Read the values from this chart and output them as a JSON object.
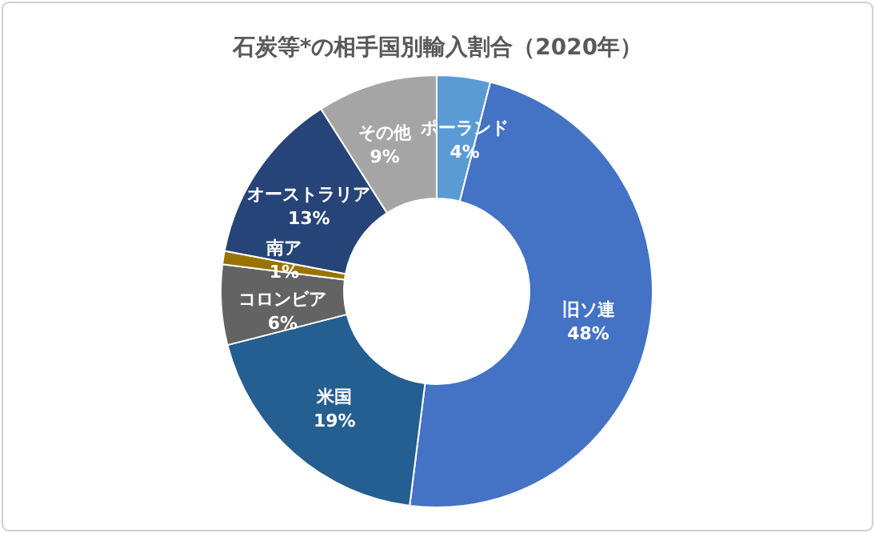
{
  "chart_data": {
    "type": "donut",
    "title": "石炭等*の相手国別輸入割合（2020年）",
    "categories": [
      "ポーランド",
      "旧ソ連",
      "米国",
      "コロンビア",
      "南ア",
      "オーストラリア",
      "その他"
    ],
    "values": [
      4,
      48,
      19,
      6,
      1,
      13,
      9
    ],
    "colors": [
      "#5b9bd5",
      "#4472c4",
      "#255e91",
      "#636363",
      "#997300",
      "#264478",
      "#a5a5a5"
    ],
    "value_labels": [
      "4%",
      "48%",
      "19%",
      "6%",
      "1%",
      "13%",
      "9%"
    ]
  }
}
